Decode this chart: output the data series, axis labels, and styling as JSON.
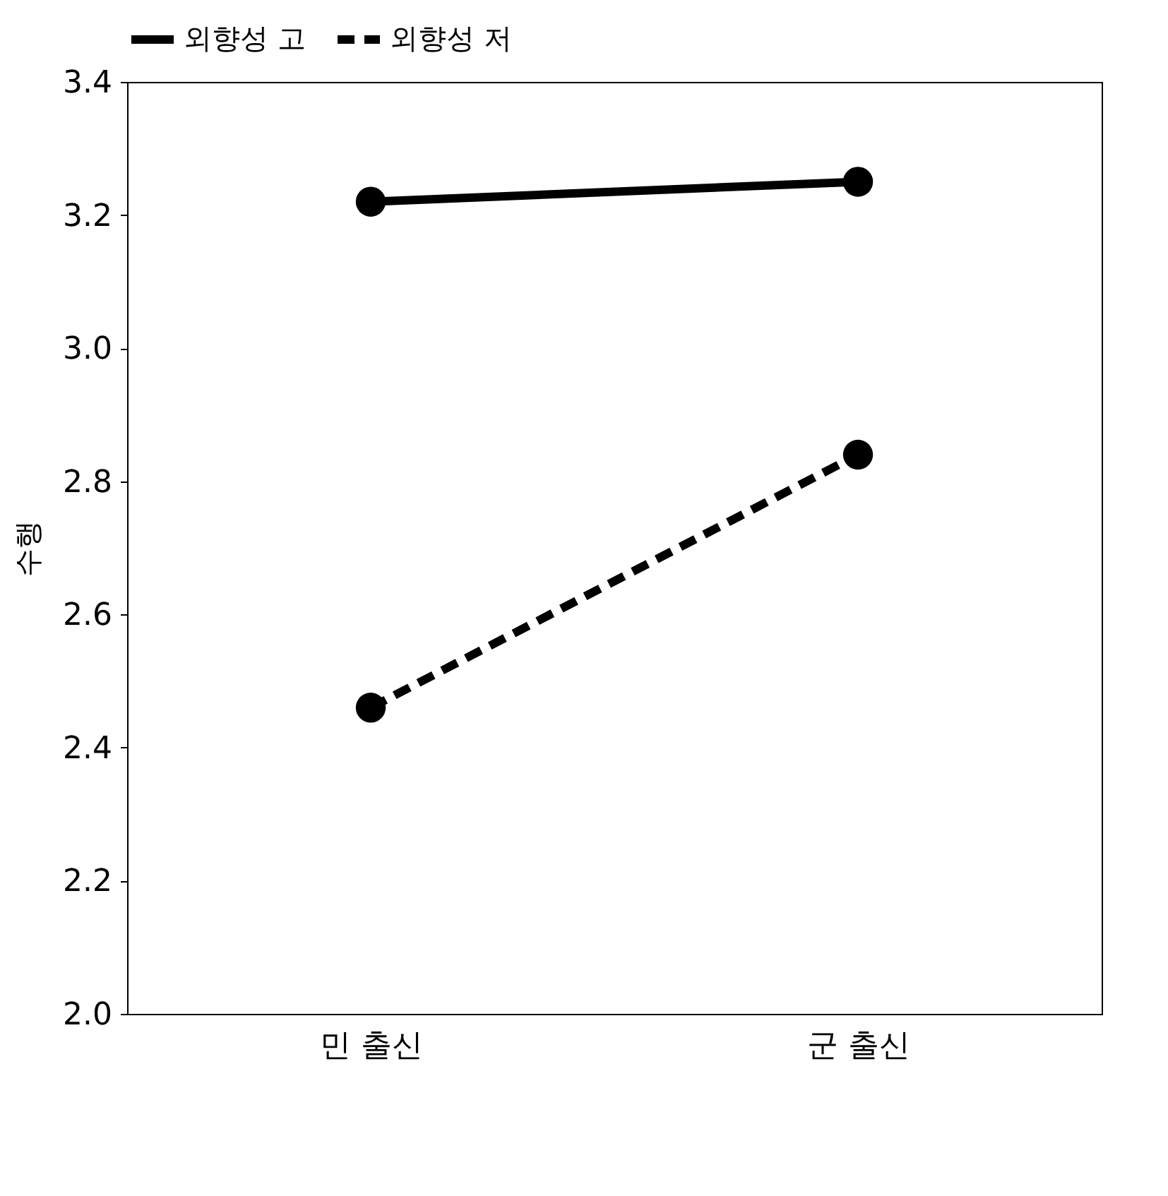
{
  "chart_data": {
    "type": "line",
    "categories": [
      "민 출신",
      "군 출신"
    ],
    "ylabel": "수행",
    "ylim": [
      2.0,
      3.4
    ],
    "yticks": [
      {
        "value": 2.0,
        "label": "2.0"
      },
      {
        "value": 2.2,
        "label": "2.2"
      },
      {
        "value": 2.4,
        "label": "2.4"
      },
      {
        "value": 2.6,
        "label": "2.6"
      },
      {
        "value": 2.8,
        "label": "2.8"
      },
      {
        "value": 3.0,
        "label": "3.0"
      },
      {
        "value": 3.2,
        "label": "3.2"
      },
      {
        "value": 3.4,
        "label": "3.4"
      }
    ],
    "grid": false,
    "legend": "top",
    "marker": "circle",
    "series": [
      {
        "name": "외향성 고",
        "color": "#000000",
        "line_style": "solid",
        "values": [
          3.22,
          3.25
        ]
      },
      {
        "name": "외향성 저",
        "color": "#000000",
        "line_style": "dashed",
        "values": [
          2.46,
          2.84
        ]
      }
    ]
  }
}
